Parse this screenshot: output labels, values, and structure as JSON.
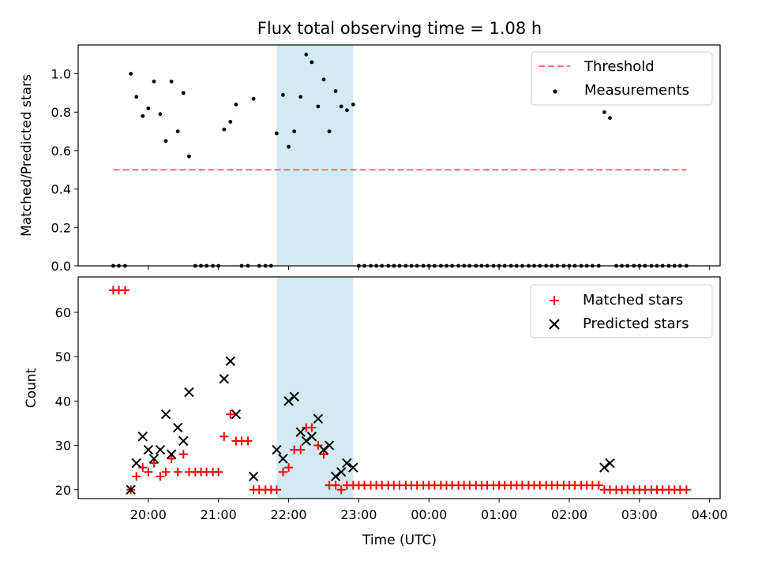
{
  "chart_data": [
    {
      "type": "scatter",
      "title": "Flux total observing time = 1.08 h",
      "xlabel": "",
      "ylabel": "Matched/Predicted stars",
      "ylim": [
        0,
        1.15
      ],
      "y_ticks": [
        "0.0",
        "0.2",
        "0.4",
        "0.6",
        "0.8",
        "1.0"
      ],
      "y_tick_values": [
        0,
        0.2,
        0.4,
        0.6,
        0.8,
        1.0
      ],
      "threshold": {
        "name": "Threshold",
        "value": 0.5,
        "x_start": 19.5,
        "x_end": 27.67,
        "color": "#ff6b6b"
      },
      "highlight_span": [
        21.83,
        22.92
      ],
      "legend": {
        "placement": "top-right",
        "entries": [
          "Threshold",
          "Measurements"
        ]
      },
      "series": [
        {
          "name": "Measurements",
          "color": "#000000",
          "x": [
            19.5,
            19.58,
            19.67,
            19.75,
            19.83,
            19.92,
            20.0,
            20.08,
            20.17,
            20.25,
            20.33,
            20.42,
            20.5,
            20.58,
            20.67,
            20.75,
            20.83,
            20.92,
            21.0,
            21.08,
            21.17,
            21.25,
            21.33,
            21.42,
            21.5,
            21.58,
            21.67,
            21.75,
            21.83,
            21.92,
            22.0,
            22.08,
            22.17,
            22.25,
            22.33,
            22.42,
            22.5,
            22.58,
            22.67,
            22.75,
            22.83,
            22.92,
            23.0,
            23.08,
            23.17,
            23.25,
            23.33,
            23.42,
            23.5,
            23.58,
            23.67,
            23.75,
            23.83,
            23.92,
            24.0,
            24.08,
            24.17,
            24.25,
            24.33,
            24.42,
            24.5,
            24.58,
            24.67,
            24.75,
            24.83,
            24.92,
            25.0,
            25.08,
            25.17,
            25.25,
            25.33,
            25.42,
            25.5,
            25.58,
            25.67,
            25.75,
            25.83,
            25.92,
            26.0,
            26.08,
            26.17,
            26.25,
            26.33,
            26.42,
            26.5,
            26.58,
            26.67,
            26.75,
            26.83,
            26.92,
            27.0,
            27.08,
            27.17,
            27.25,
            27.33,
            27.42,
            27.5,
            27.58,
            27.67
          ],
          "y": [
            0,
            0,
            0,
            1.0,
            0.88,
            0.78,
            0.82,
            0.96,
            0.79,
            0.65,
            0.96,
            0.7,
            0.9,
            0.57,
            0,
            0,
            0,
            0,
            0,
            0.71,
            0.75,
            0.84,
            0,
            0,
            0.87,
            0,
            0,
            0,
            0.69,
            0.89,
            0.62,
            0.7,
            0.88,
            1.1,
            1.06,
            0.83,
            0.97,
            0.7,
            0.91,
            0.83,
            0.81,
            0.84,
            0,
            0,
            0,
            0,
            0,
            0,
            0,
            0,
            0,
            0,
            0,
            0,
            0,
            0,
            0,
            0,
            0,
            0,
            0,
            0,
            0,
            0,
            0,
            0,
            0,
            0,
            0,
            0,
            0,
            0,
            0,
            0,
            0,
            0,
            0,
            0,
            0,
            0,
            0,
            0,
            0,
            0,
            0.8,
            0.77,
            0,
            0,
            0,
            0,
            0,
            0,
            0,
            0,
            0,
            0,
            0,
            0,
            0
          ]
        }
      ]
    },
    {
      "type": "scatter",
      "title": "",
      "xlabel": "Time (UTC)",
      "ylabel": "Count",
      "ylim": [
        18,
        68
      ],
      "y_ticks": [
        "20",
        "30",
        "40",
        "50",
        "60"
      ],
      "y_tick_values": [
        20,
        30,
        40,
        50,
        60
      ],
      "xlim": [
        19.0,
        28.15
      ],
      "x_ticks": [
        "20:00",
        "21:00",
        "22:00",
        "23:00",
        "00:00",
        "01:00",
        "02:00",
        "03:00",
        "04:00"
      ],
      "x_tick_values": [
        20,
        21,
        22,
        23,
        24,
        25,
        26,
        27,
        28
      ],
      "highlight_span": [
        21.83,
        22.92
      ],
      "legend": {
        "placement": "top-right",
        "entries": [
          "Matched stars",
          "Predicted stars"
        ]
      },
      "series": [
        {
          "name": "Matched stars",
          "marker": "plus",
          "color": "#ff0000",
          "x": [
            19.5,
            19.58,
            19.67,
            19.75,
            19.83,
            19.92,
            20.0,
            20.08,
            20.17,
            20.25,
            20.33,
            20.42,
            20.5,
            20.58,
            20.67,
            20.75,
            20.83,
            20.92,
            21.0,
            21.08,
            21.17,
            21.25,
            21.33,
            21.42,
            21.5,
            21.58,
            21.67,
            21.75,
            21.83,
            21.92,
            22.0,
            22.08,
            22.17,
            22.25,
            22.33,
            22.42,
            22.5,
            22.58,
            22.67,
            22.75,
            22.83,
            22.92,
            23.0,
            23.08,
            23.17,
            23.25,
            23.33,
            23.42,
            23.5,
            23.58,
            23.67,
            23.75,
            23.83,
            23.92,
            24.0,
            24.08,
            24.17,
            24.25,
            24.33,
            24.42,
            24.5,
            24.58,
            24.67,
            24.75,
            24.83,
            24.92,
            25.0,
            25.08,
            25.17,
            25.25,
            25.33,
            25.42,
            25.5,
            25.58,
            25.67,
            25.75,
            25.83,
            25.92,
            26.0,
            26.08,
            26.17,
            26.25,
            26.33,
            26.42,
            26.5,
            26.58,
            26.67,
            26.75,
            26.83,
            26.92,
            27.0,
            27.08,
            27.17,
            27.25,
            27.33,
            27.42,
            27.5,
            27.58,
            27.67
          ],
          "y": [
            65,
            65,
            65,
            20,
            23,
            25,
            24,
            26,
            23,
            24,
            27,
            24,
            28,
            24,
            24,
            24,
            24,
            24,
            24,
            32,
            37,
            31,
            31,
            31,
            20,
            20,
            20,
            20,
            20,
            24,
            25,
            29,
            29,
            34,
            34,
            30,
            28,
            21,
            21,
            20,
            21,
            21,
            21,
            21,
            21,
            21,
            21,
            21,
            21,
            21,
            21,
            21,
            21,
            21,
            21,
            21,
            21,
            21,
            21,
            21,
            21,
            21,
            21,
            21,
            21,
            21,
            21,
            21,
            21,
            21,
            21,
            21,
            21,
            21,
            21,
            21,
            21,
            21,
            21,
            21,
            21,
            21,
            21,
            21,
            20,
            20,
            20,
            20,
            20,
            20,
            20,
            20,
            20,
            20,
            20,
            20,
            20,
            20,
            20
          ]
        },
        {
          "name": "Predicted stars",
          "marker": "x",
          "color": "#000000",
          "x": [
            19.75,
            19.83,
            19.92,
            20.0,
            20.08,
            20.17,
            20.25,
            20.33,
            20.42,
            20.5,
            20.58,
            21.08,
            21.17,
            21.25,
            21.5,
            21.83,
            21.92,
            22.0,
            22.08,
            22.17,
            22.25,
            22.33,
            22.42,
            22.5,
            22.58,
            22.67,
            22.75,
            22.83,
            22.92,
            26.5,
            26.58
          ],
          "y": [
            20,
            26,
            32,
            29,
            27,
            29,
            37,
            28,
            34,
            31,
            42,
            45,
            49,
            37,
            23,
            29,
            27,
            40,
            41,
            33,
            31,
            32,
            36,
            29,
            30,
            23,
            24,
            26,
            25,
            25,
            26
          ]
        }
      ]
    }
  ]
}
